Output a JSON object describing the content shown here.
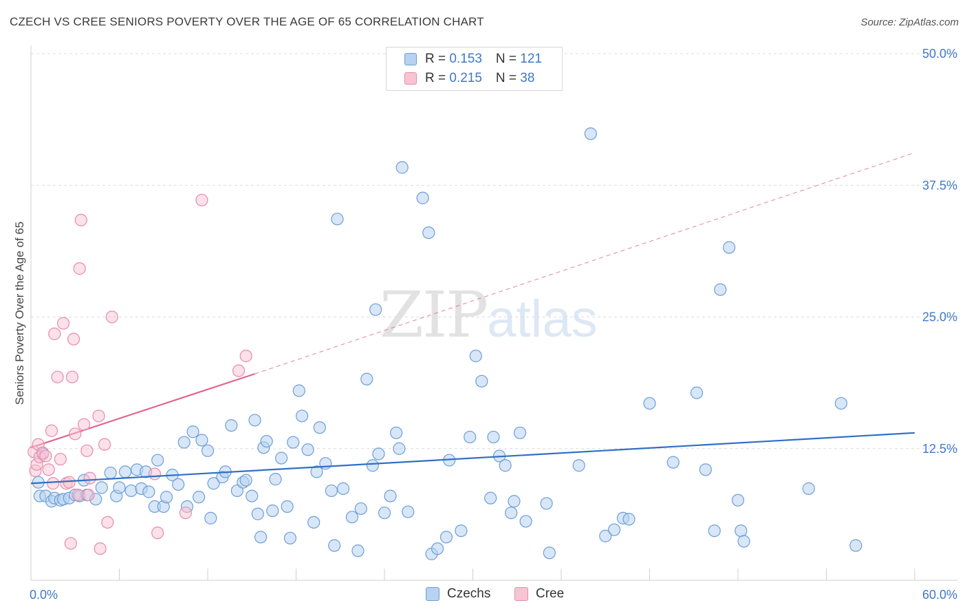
{
  "header": {
    "title": "CZECH VS CREE SENIORS POVERTY OVER THE AGE OF 65 CORRELATION CHART",
    "source": "Source: ZipAtlas.com"
  },
  "watermark": {
    "zip": "ZIP",
    "atlas": "atlas"
  },
  "legend": {
    "rows": [
      {
        "r_label": "R = ",
        "r_value": "0.153",
        "n_label": "N = ",
        "n_value": "121"
      },
      {
        "r_label": "R = ",
        "r_value": "0.215",
        "n_label": "N = ",
        "n_value": "38"
      }
    ]
  },
  "bottom_legend": {
    "czechs": "Czechs",
    "cree": "Cree"
  },
  "colors": {
    "czech_fill": "#b8d2f0",
    "czech_stroke": "#6a9fd8",
    "czech_line": "#2f6fc4",
    "cree_fill": "#f8c4d4",
    "cree_stroke": "#e88aa8",
    "cree_line": "#e0648e",
    "grid": "#dcdcdc",
    "tick_text": "#3d78c8"
  },
  "chart_data": {
    "type": "scatter",
    "title": "CZECH VS CREE SENIORS POVERTY OVER THE AGE OF 65 CORRELATION CHART",
    "xlabel": "",
    "ylabel": "Seniors Poverty Over the Age of 65",
    "xlim": [
      0,
      60
    ],
    "ylim": [
      0,
      50
    ],
    "x_tick_labels": [
      "0.0%",
      "60.0%"
    ],
    "y_ticks": [
      12.5,
      25.0,
      37.5,
      50.0
    ],
    "y_tick_labels": [
      "12.5%",
      "25.0%",
      "37.5%",
      "50.0%"
    ],
    "grid": "horizontal dashed",
    "legend_placement": "top-center",
    "series": [
      {
        "name": "Czechs",
        "R": 0.153,
        "N": 121,
        "trend": {
          "x": [
            0,
            60
          ],
          "y": [
            9.2,
            14.0
          ]
        },
        "points": [
          [
            0.5,
            9.3
          ],
          [
            0.6,
            8.0
          ],
          [
            0.8,
            12.0
          ],
          [
            1.0,
            8.0
          ],
          [
            1.4,
            7.5
          ],
          [
            1.6,
            7.8
          ],
          [
            2.0,
            7.6
          ],
          [
            2.2,
            7.7
          ],
          [
            2.6,
            7.8
          ],
          [
            3.0,
            8.1
          ],
          [
            3.3,
            8.0
          ],
          [
            3.6,
            9.5
          ],
          [
            3.8,
            8.1
          ],
          [
            4.4,
            7.7
          ],
          [
            4.8,
            8.8
          ],
          [
            5.4,
            10.2
          ],
          [
            5.8,
            8.0
          ],
          [
            6.0,
            8.8
          ],
          [
            6.4,
            10.3
          ],
          [
            6.8,
            8.5
          ],
          [
            7.2,
            10.5
          ],
          [
            7.5,
            8.7
          ],
          [
            7.8,
            10.3
          ],
          [
            8.0,
            8.4
          ],
          [
            8.4,
            7.0
          ],
          [
            8.6,
            11.4
          ],
          [
            9.0,
            7.0
          ],
          [
            9.2,
            7.9
          ],
          [
            9.6,
            10.0
          ],
          [
            10.0,
            9.1
          ],
          [
            10.4,
            13.1
          ],
          [
            10.6,
            7.0
          ],
          [
            11.0,
            14.1
          ],
          [
            11.4,
            7.9
          ],
          [
            11.6,
            13.3
          ],
          [
            12.0,
            12.3
          ],
          [
            12.2,
            5.9
          ],
          [
            12.4,
            9.2
          ],
          [
            13.0,
            9.8
          ],
          [
            13.2,
            10.3
          ],
          [
            13.6,
            14.7
          ],
          [
            14.0,
            8.5
          ],
          [
            14.4,
            9.3
          ],
          [
            14.6,
            9.5
          ],
          [
            15.0,
            8.0
          ],
          [
            15.2,
            15.2
          ],
          [
            15.4,
            6.3
          ],
          [
            15.6,
            4.1
          ],
          [
            15.8,
            12.6
          ],
          [
            16.0,
            13.2
          ],
          [
            16.4,
            6.6
          ],
          [
            16.6,
            9.6
          ],
          [
            17.0,
            11.6
          ],
          [
            17.4,
            7.0
          ],
          [
            17.6,
            4.0
          ],
          [
            17.8,
            13.1
          ],
          [
            18.2,
            18.0
          ],
          [
            18.4,
            15.6
          ],
          [
            18.8,
            12.4
          ],
          [
            19.2,
            5.5
          ],
          [
            19.4,
            10.3
          ],
          [
            19.6,
            14.5
          ],
          [
            20.0,
            11.1
          ],
          [
            20.4,
            8.5
          ],
          [
            20.6,
            3.3
          ],
          [
            20.8,
            34.3
          ],
          [
            21.2,
            8.7
          ],
          [
            21.8,
            6.0
          ],
          [
            22.2,
            2.8
          ],
          [
            22.4,
            6.8
          ],
          [
            22.8,
            19.1
          ],
          [
            23.2,
            10.9
          ],
          [
            23.4,
            25.7
          ],
          [
            23.6,
            12.0
          ],
          [
            24.0,
            6.4
          ],
          [
            24.4,
            8.0
          ],
          [
            24.8,
            14.0
          ],
          [
            25.0,
            12.5
          ],
          [
            25.2,
            39.2
          ],
          [
            25.6,
            6.5
          ],
          [
            26.6,
            36.3
          ],
          [
            27.0,
            33.0
          ],
          [
            27.2,
            2.5
          ],
          [
            27.6,
            3.0
          ],
          [
            28.2,
            4.1
          ],
          [
            28.4,
            11.4
          ],
          [
            29.2,
            4.7
          ],
          [
            29.8,
            13.6
          ],
          [
            30.2,
            21.3
          ],
          [
            30.6,
            18.9
          ],
          [
            31.2,
            7.8
          ],
          [
            31.4,
            13.6
          ],
          [
            31.8,
            11.8
          ],
          [
            32.2,
            10.9
          ],
          [
            32.6,
            6.4
          ],
          [
            32.8,
            7.5
          ],
          [
            33.2,
            14.0
          ],
          [
            33.6,
            5.6
          ],
          [
            35.0,
            7.3
          ],
          [
            35.2,
            2.6
          ],
          [
            37.2,
            10.9
          ],
          [
            38.0,
            42.4
          ],
          [
            39.0,
            4.2
          ],
          [
            39.6,
            4.8
          ],
          [
            40.2,
            5.9
          ],
          [
            40.6,
            5.8
          ],
          [
            42.0,
            16.8
          ],
          [
            43.6,
            11.2
          ],
          [
            45.2,
            17.8
          ],
          [
            45.8,
            10.5
          ],
          [
            46.4,
            4.7
          ],
          [
            46.8,
            27.6
          ],
          [
            47.4,
            31.6
          ],
          [
            48.0,
            7.6
          ],
          [
            48.2,
            4.7
          ],
          [
            48.4,
            3.7
          ],
          [
            52.8,
            8.7
          ],
          [
            55.0,
            16.8
          ],
          [
            56.0,
            3.3
          ]
        ]
      },
      {
        "name": "Cree",
        "R": 0.215,
        "N": 38,
        "trend": {
          "x": [
            0,
            15.2
          ],
          "y": [
            12.6,
            19.6
          ],
          "extension": {
            "x": [
              15.2,
              60
            ],
            "y": [
              19.6,
              40.6
            ]
          }
        },
        "points": [
          [
            0.2,
            12.2
          ],
          [
            0.3,
            10.4
          ],
          [
            0.4,
            11.0
          ],
          [
            0.5,
            12.9
          ],
          [
            0.6,
            11.7
          ],
          [
            0.8,
            12.1
          ],
          [
            1.0,
            11.8
          ],
          [
            1.2,
            10.5
          ],
          [
            1.4,
            14.2
          ],
          [
            1.5,
            9.2
          ],
          [
            1.6,
            23.4
          ],
          [
            1.8,
            19.3
          ],
          [
            2.0,
            11.5
          ],
          [
            2.2,
            24.4
          ],
          [
            2.4,
            9.2
          ],
          [
            2.6,
            9.3
          ],
          [
            2.7,
            3.5
          ],
          [
            2.8,
            19.3
          ],
          [
            2.9,
            22.9
          ],
          [
            3.0,
            13.9
          ],
          [
            3.2,
            8.1
          ],
          [
            3.3,
            29.6
          ],
          [
            3.4,
            34.2
          ],
          [
            3.6,
            14.8
          ],
          [
            3.8,
            12.3
          ],
          [
            3.9,
            8.1
          ],
          [
            4.0,
            9.7
          ],
          [
            4.6,
            15.6
          ],
          [
            4.7,
            3.0
          ],
          [
            5.0,
            12.9
          ],
          [
            5.2,
            5.5
          ],
          [
            5.5,
            25.0
          ],
          [
            8.4,
            10.1
          ],
          [
            8.6,
            4.5
          ],
          [
            10.5,
            6.4
          ],
          [
            11.6,
            36.1
          ],
          [
            14.1,
            19.9
          ],
          [
            14.6,
            21.3
          ]
        ]
      }
    ]
  }
}
